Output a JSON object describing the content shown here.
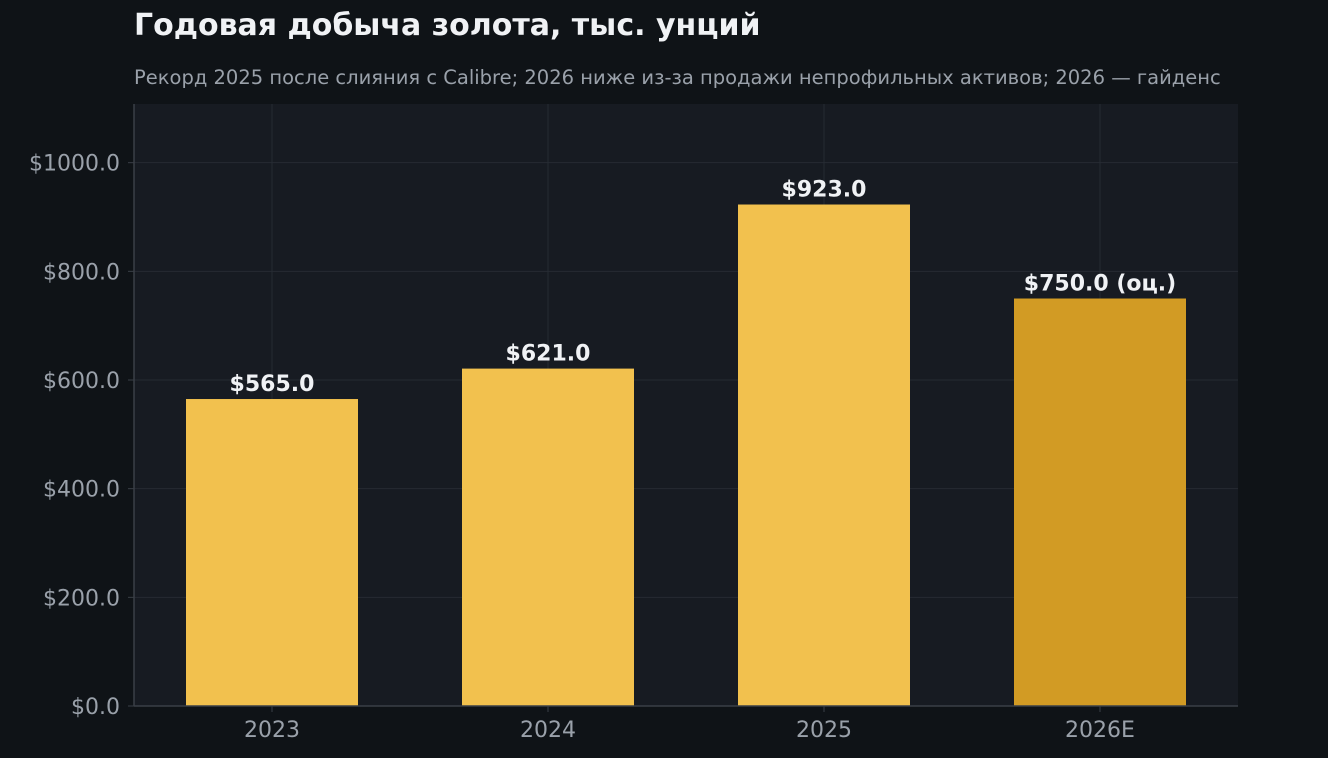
{
  "chart_data": {
    "type": "bar",
    "title": "Годовая добыча золота, тыс. унций",
    "subtitle": "Рекорд 2025 после слияния с Calibre; 2026 ниже из-за продажи непрофильных активов; 2026 — гайденс",
    "categories": [
      "2023",
      "2024",
      "2025",
      "2026E"
    ],
    "values": [
      565.0,
      621.0,
      923.0,
      750.0
    ],
    "data_labels": [
      "$565.0",
      "$621.0",
      "$923.0",
      "$750.0 (оц.)"
    ],
    "estimate": [
      false,
      false,
      false,
      true
    ],
    "y_ticks": [
      0,
      200,
      400,
      600,
      800,
      1000
    ],
    "y_tick_labels": [
      "$0.0",
      "$200.0",
      "$400.0",
      "$600.0",
      "$800.0",
      "$1000.0"
    ],
    "ylim": [
      0,
      1108
    ],
    "xlabel": "",
    "ylabel": "",
    "grid": true,
    "colors": {
      "bar": "#f2c14e",
      "bar_estimate": "#d29b24",
      "plot_bg": "#171b22",
      "page_bg": "#0f1317",
      "grid": "#262b33",
      "tick_text": "#9aa1aa",
      "label_text": "#f0f2f5"
    }
  }
}
